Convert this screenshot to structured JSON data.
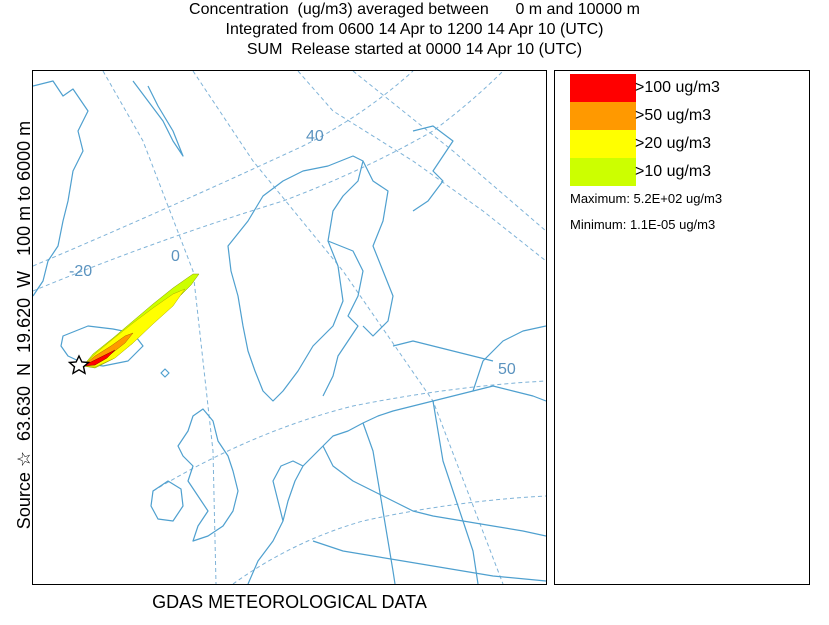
{
  "header": {
    "line1": "Concentration  (ug/m3) averaged between      0 m and 10000 m",
    "line2": "Integrated from 0600 14 Apr to 1200 14 Apr 10 (UTC)",
    "line3": "SUM  Release started at 0000 14 Apr 10 (UTC)"
  },
  "side_label": "Source ☆  63.630  N  19.620  W   100 m to 6000 m",
  "footer": "GDAS METEOROLOGICAL DATA",
  "map": {
    "grid_labels": [
      "40",
      "0",
      "-20",
      "50"
    ],
    "source_marker": "star",
    "colors": {
      "coast": "#4fa0cf",
      "grid": "#7fb3d8"
    }
  },
  "legend": {
    "items": [
      {
        "label": ">100 ug/m3",
        "color": "#ff0000"
      },
      {
        "label": ">50 ug/m3",
        "color": "#ff9900"
      },
      {
        "label": ">20 ug/m3",
        "color": "#ffff00"
      },
      {
        "label": ">10 ug/m3",
        "color": "#ccff00"
      }
    ],
    "maximum": "Maximum: 5.2E+02 ug/m3",
    "minimum": "Minimum: 1.1E-05 ug/m3"
  }
}
